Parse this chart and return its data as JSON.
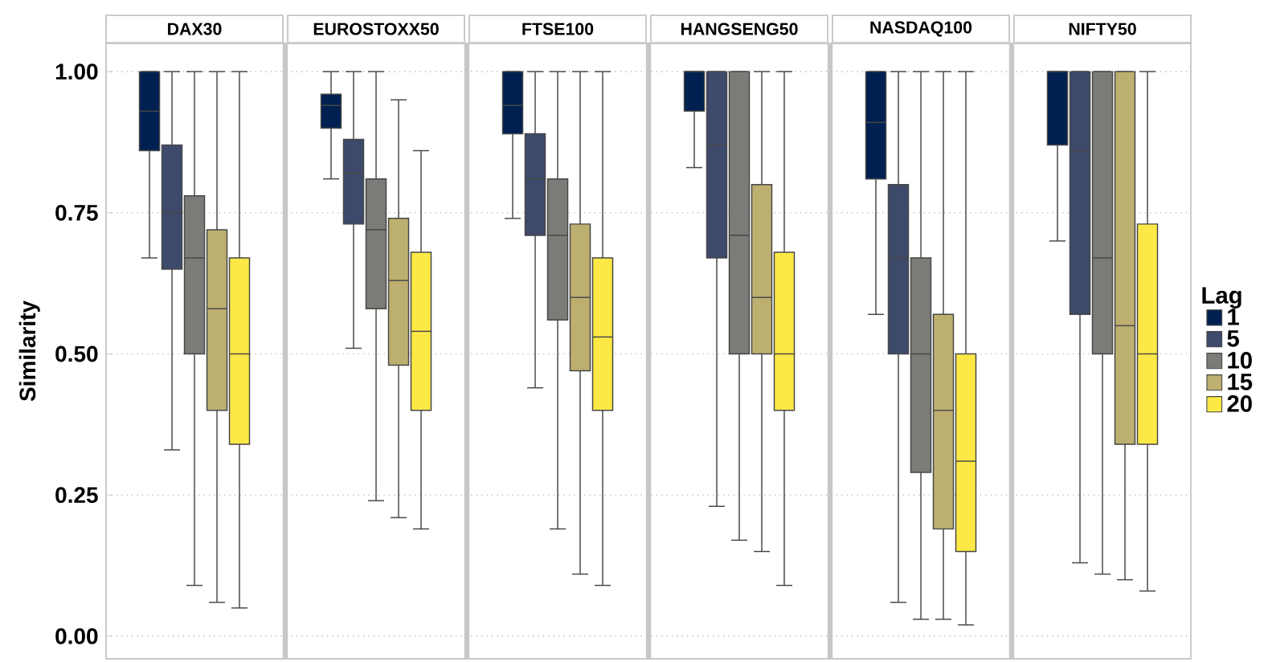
{
  "chart_data": {
    "type": "box",
    "ylabel": "Similarity",
    "legend": "right",
    "legend_title": "Lag",
    "grid": "y",
    "categories": [
      "DAX30",
      "EUROSTOXX50",
      "FTSE100",
      "HANGSENG50",
      "NASDAQ100",
      "NIFTY50"
    ],
    "ylim": [
      -0.04,
      1.05
    ],
    "yticks": [
      {
        "value": 0,
        "label": "0.00"
      },
      {
        "value": 0.25,
        "label": "0.25"
      },
      {
        "value": 0.5,
        "label": "0.50"
      },
      {
        "value": 0.75,
        "label": "0.75"
      },
      {
        "value": 1,
        "label": "1.00"
      }
    ],
    "series": [
      {
        "name": "1",
        "color": "#002051",
        "boxes": [
          {
            "low": 0.67,
            "q1": 0.86,
            "median": 0.93,
            "q3": 1.0,
            "high": 1.0
          },
          {
            "low": 0.81,
            "q1": 0.9,
            "median": 0.94,
            "q3": 0.96,
            "high": 1.0
          },
          {
            "low": 0.74,
            "q1": 0.89,
            "median": 0.94,
            "q3": 1.0,
            "high": 1.0
          },
          {
            "low": 0.83,
            "q1": 0.93,
            "median": 1.0,
            "q3": 1.0,
            "high": 1.0
          },
          {
            "low": 0.57,
            "q1": 0.81,
            "median": 0.91,
            "q3": 1.0,
            "high": 1.0
          },
          {
            "low": 0.7,
            "q1": 0.87,
            "median": 1.0,
            "q3": 1.0,
            "high": 1.0
          }
        ]
      },
      {
        "name": "5",
        "color": "#3d4a6b",
        "boxes": [
          {
            "low": 0.33,
            "q1": 0.65,
            "median": 0.75,
            "q3": 0.87,
            "high": 1.0
          },
          {
            "low": 0.51,
            "q1": 0.73,
            "median": 0.82,
            "q3": 0.88,
            "high": 1.0
          },
          {
            "low": 0.44,
            "q1": 0.71,
            "median": 0.81,
            "q3": 0.89,
            "high": 1.0
          },
          {
            "low": 0.23,
            "q1": 0.67,
            "median": 0.87,
            "q3": 1.0,
            "high": 1.0
          },
          {
            "low": 0.06,
            "q1": 0.5,
            "median": 0.67,
            "q3": 0.8,
            "high": 1.0
          },
          {
            "low": 0.13,
            "q1": 0.57,
            "median": 0.86,
            "q3": 1.0,
            "high": 1.0
          }
        ]
      },
      {
        "name": "10",
        "color": "#7b7b78",
        "boxes": [
          {
            "low": 0.09,
            "q1": 0.5,
            "median": 0.67,
            "q3": 0.78,
            "high": 1.0
          },
          {
            "low": 0.24,
            "q1": 0.58,
            "median": 0.72,
            "q3": 0.81,
            "high": 1.0
          },
          {
            "low": 0.19,
            "q1": 0.56,
            "median": 0.71,
            "q3": 0.81,
            "high": 1.0
          },
          {
            "low": 0.17,
            "q1": 0.5,
            "median": 0.71,
            "q3": 1.0,
            "high": 1.0
          },
          {
            "low": 0.03,
            "q1": 0.29,
            "median": 0.5,
            "q3": 0.67,
            "high": 1.0
          },
          {
            "low": 0.11,
            "q1": 0.5,
            "median": 0.67,
            "q3": 1.0,
            "high": 1.0
          }
        ]
      },
      {
        "name": "15",
        "color": "#bcaf6f",
        "boxes": [
          {
            "low": 0.06,
            "q1": 0.4,
            "median": 0.58,
            "q3": 0.72,
            "high": 1.0
          },
          {
            "low": 0.21,
            "q1": 0.48,
            "median": 0.63,
            "q3": 0.74,
            "high": 0.95
          },
          {
            "low": 0.11,
            "q1": 0.47,
            "median": 0.6,
            "q3": 0.73,
            "high": 1.0
          },
          {
            "low": 0.15,
            "q1": 0.5,
            "median": 0.6,
            "q3": 0.8,
            "high": 1.0
          },
          {
            "low": 0.03,
            "q1": 0.19,
            "median": 0.4,
            "q3": 0.57,
            "high": 1.0
          },
          {
            "low": 0.1,
            "q1": 0.34,
            "median": 0.55,
            "q3": 1.0,
            "high": 1.0
          }
        ]
      },
      {
        "name": "20",
        "color": "#fde945",
        "boxes": [
          {
            "low": 0.05,
            "q1": 0.34,
            "median": 0.5,
            "q3": 0.67,
            "high": 1.0
          },
          {
            "low": 0.19,
            "q1": 0.4,
            "median": 0.54,
            "q3": 0.68,
            "high": 0.86
          },
          {
            "low": 0.09,
            "q1": 0.4,
            "median": 0.53,
            "q3": 0.67,
            "high": 1.0
          },
          {
            "low": 0.09,
            "q1": 0.4,
            "median": 0.5,
            "q3": 0.68,
            "high": 1.0
          },
          {
            "low": 0.02,
            "q1": 0.15,
            "median": 0.31,
            "q3": 0.5,
            "high": 1.0
          },
          {
            "low": 0.08,
            "q1": 0.34,
            "median": 0.5,
            "q3": 0.73,
            "high": 1.0
          }
        ]
      }
    ]
  }
}
